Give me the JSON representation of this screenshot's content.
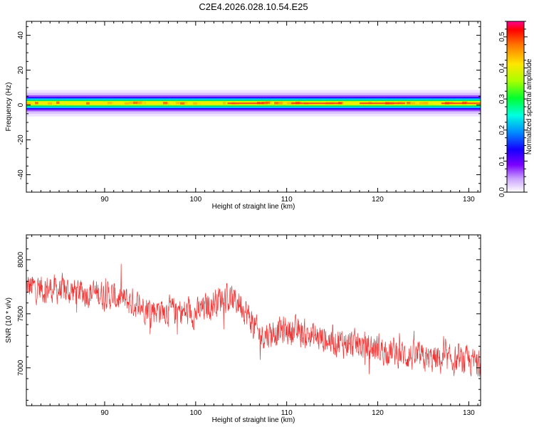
{
  "title": "C2E4.2026.028.10.54.E25",
  "colors": {
    "axis": "#000000",
    "snr_line": "#f03333",
    "background": "#ffffff"
  },
  "chart_data": [
    {
      "type": "heatmap",
      "xlabel": "Height of straight line (km)",
      "ylabel": "Frequency (Hz)",
      "xlim": [
        81.4,
        131.3
      ],
      "ylim": [
        -50,
        48
      ],
      "x_ticks": [
        90,
        100,
        110,
        120,
        130
      ],
      "y_ticks": [
        40,
        20,
        0,
        -20,
        -40
      ],
      "band_center_hz": 1,
      "band_halfwidth_hz": 4,
      "colorbar": {
        "label": "Normalized spectral amplitude",
        "range": [
          0.0,
          0.55
        ],
        "ticks": [
          0.0,
          0.1,
          0.2,
          0.3,
          0.4,
          0.5
        ],
        "colormap": "rainbow"
      }
    },
    {
      "type": "line",
      "xlabel": "Height of straight line (km)",
      "ylabel": "SNR (10 * v/v)",
      "xlim": [
        81.4,
        131.3
      ],
      "ylim": [
        6650,
        8230
      ],
      "x_ticks": [
        90,
        100,
        110,
        120,
        130
      ],
      "y_ticks": [
        7000,
        7500,
        8000
      ],
      "trend": {
        "x": [
          81.4,
          85,
          90,
          95,
          100,
          103,
          105,
          107,
          110,
          115,
          120,
          125,
          131.3
        ],
        "y": [
          7750,
          7720,
          7680,
          7550,
          7500,
          7660,
          7600,
          7300,
          7350,
          7250,
          7180,
          7080,
          7050
        ]
      },
      "noise_amplitude": 180
    }
  ]
}
